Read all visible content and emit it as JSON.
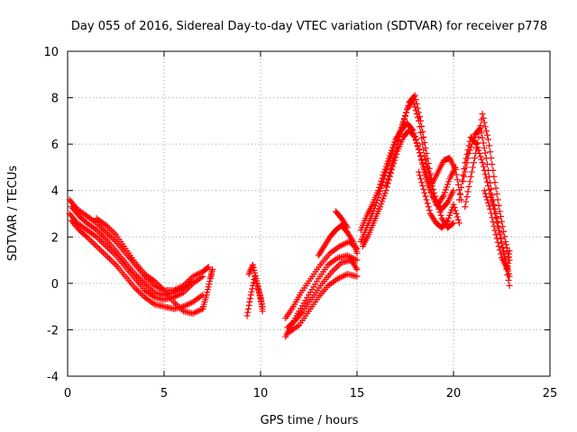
{
  "chart_data": {
    "type": "scatter",
    "title": "Day 055 of 2016, Sidereal Day-to-day VTEC variation (SDTVAR) for receiver p778",
    "xlabel": "GPS time / hours",
    "ylabel": "SDTVAR / TECUs",
    "xlim": [
      0,
      25
    ],
    "ylim": [
      -4,
      10
    ],
    "xticks": [
      0,
      5,
      10,
      15,
      20,
      25
    ],
    "yticks": [
      -4,
      -2,
      0,
      2,
      4,
      6,
      8,
      10
    ],
    "xtick_labels": [
      "0",
      "5",
      "10",
      "15",
      "20",
      "25"
    ],
    "ytick_labels": [
      "-4",
      "-2",
      "0",
      "2",
      "4",
      "6",
      "8",
      "10"
    ],
    "grid": true,
    "marker": "+",
    "series": [
      {
        "name": "SDTVAR",
        "color": "#ff0000",
        "tracks": [
          {
            "x": [
              0.1,
              0.5,
              1.0,
              1.5,
              2.0,
              2.5,
              3.0,
              3.5,
              4.0,
              4.5,
              5.0,
              5.5,
              6.0,
              6.5,
              7.0,
              7.3
            ],
            "y": [
              3.6,
              3.2,
              2.9,
              2.6,
              2.2,
              1.8,
              1.3,
              0.8,
              0.3,
              -0.1,
              -0.3,
              -0.3,
              -0.1,
              0.3,
              0.5,
              0.7
            ]
          },
          {
            "x": [
              0.1,
              0.5,
              1.0,
              1.5,
              2.0,
              2.5,
              3.0,
              3.5,
              4.0,
              4.5,
              5.0,
              5.5,
              6.0,
              6.5,
              7.0
            ],
            "y": [
              3.0,
              2.6,
              2.3,
              2.0,
              1.6,
              1.2,
              0.7,
              0.2,
              -0.3,
              -0.6,
              -0.7,
              -0.6,
              -0.4,
              0.0,
              0.3
            ]
          },
          {
            "x": [
              0.2,
              0.6,
              1.0,
              1.5,
              2.0,
              2.5,
              3.0,
              3.5,
              4.0,
              4.5,
              5.0,
              5.5,
              6.0,
              6.5,
              7.0
            ],
            "y": [
              2.7,
              2.3,
              2.0,
              1.6,
              1.2,
              0.8,
              0.3,
              -0.2,
              -0.6,
              -0.9,
              -1.0,
              -1.1,
              -1.0,
              -0.8,
              -0.5
            ]
          },
          {
            "x": [
              0.2,
              0.6,
              1.0,
              1.5,
              2.0,
              2.5,
              3.0,
              3.5,
              4.0,
              4.5,
              5.0,
              5.5,
              6.0,
              6.5
            ],
            "y": [
              3.3,
              2.9,
              2.6,
              2.3,
              1.9,
              1.4,
              0.9,
              0.4,
              0.0,
              -0.4,
              -0.5,
              -0.4,
              -0.2,
              0.1
            ]
          },
          {
            "x": [
              1.5,
              2.0,
              2.5,
              3.0,
              3.5,
              4.0,
              4.5,
              5.0,
              5.5,
              6.0,
              6.5,
              7.0
            ],
            "y": [
              2.8,
              2.5,
              2.1,
              1.5,
              0.9,
              0.4,
              0.1,
              -0.3,
              -0.8,
              -1.2,
              -1.3,
              -1.1
            ]
          },
          {
            "x": [
              7.0,
              7.2,
              7.4,
              7.5
            ],
            "y": [
              -1.1,
              -0.5,
              0.2,
              0.6
            ]
          },
          {
            "x": [
              9.3,
              9.5,
              9.7,
              9.9,
              10.1
            ],
            "y": [
              -1.4,
              -0.5,
              0.3,
              -0.3,
              -1.0
            ]
          },
          {
            "x": [
              9.4,
              9.6,
              9.8,
              10.0,
              10.1
            ],
            "y": [
              0.4,
              0.8,
              0.1,
              -0.6,
              -1.2
            ]
          },
          {
            "x": [
              11.3,
              11.6,
              12.0,
              12.5,
              13.0,
              13.5,
              14.0,
              14.5,
              15.0
            ],
            "y": [
              -2.3,
              -1.8,
              -1.2,
              -0.5,
              0.2,
              0.8,
              1.1,
              1.2,
              1.0
            ]
          },
          {
            "x": [
              11.3,
              11.7,
              12.1,
              12.6,
              13.1,
              13.6,
              14.1,
              14.6,
              15.0
            ],
            "y": [
              -1.5,
              -1.0,
              -0.4,
              0.2,
              0.8,
              1.3,
              1.6,
              1.8,
              1.5
            ]
          },
          {
            "x": [
              11.4,
              11.8,
              12.2,
              12.7,
              13.2,
              13.7,
              14.2,
              14.7,
              15.0
            ],
            "y": [
              -1.9,
              -1.6,
              -1.2,
              -0.6,
              0.0,
              0.5,
              0.9,
              1.0,
              0.6
            ]
          },
          {
            "x": [
              11.5,
              12.0,
              12.5,
              13.0,
              13.5,
              14.0,
              14.5,
              15.0
            ],
            "y": [
              -2.1,
              -1.8,
              -1.2,
              -0.6,
              -0.1,
              0.2,
              0.4,
              0.3
            ]
          },
          {
            "x": [
              13.0,
              13.3,
              13.6,
              13.9,
              14.2,
              14.5,
              14.8,
              15.0
            ],
            "y": [
              1.2,
              1.6,
              2.0,
              2.3,
              2.5,
              2.2,
              1.8,
              1.3
            ]
          },
          {
            "x": [
              13.9,
              14.2,
              14.5
            ],
            "y": [
              3.1,
              2.8,
              2.4
            ]
          },
          {
            "x": [
              15.2,
              15.5,
              15.8,
              16.1,
              16.4,
              16.7,
              17.0,
              17.3,
              17.6,
              17.9,
              18.2,
              18.5,
              18.8,
              19.1,
              19.4,
              19.7,
              20.0
            ],
            "y": [
              1.8,
              2.4,
              3.0,
              3.7,
              4.5,
              5.3,
              6.1,
              6.7,
              7.5,
              7.9,
              7.0,
              5.5,
              4.5,
              3.6,
              2.8,
              2.4,
              2.6
            ]
          },
          {
            "x": [
              15.2,
              15.5,
              15.8,
              16.1,
              16.4,
              16.7,
              17.0,
              17.3,
              17.6,
              17.9,
              18.2,
              18.5,
              18.8,
              19.1,
              19.4,
              19.7,
              20.0
            ],
            "y": [
              2.3,
              2.9,
              3.4,
              4.0,
              4.8,
              5.5,
              6.2,
              6.6,
              6.9,
              6.6,
              5.8,
              4.8,
              4.0,
              3.4,
              3.2,
              3.5,
              4.0
            ]
          },
          {
            "x": [
              15.3,
              15.6,
              15.9,
              16.2,
              16.5,
              16.8,
              17.1,
              17.4,
              17.7,
              18.0,
              18.3,
              18.6,
              18.9,
              19.2,
              19.5,
              19.8,
              20.1
            ],
            "y": [
              1.6,
              2.1,
              2.7,
              3.3,
              4.0,
              4.9,
              5.7,
              6.3,
              6.6,
              6.3,
              5.5,
              4.6,
              3.8,
              3.4,
              3.8,
              4.5,
              5.0
            ]
          },
          {
            "x": [
              16.5,
              16.8,
              17.1,
              17.4,
              17.7,
              18.0,
              18.3,
              18.6,
              18.9,
              19.2,
              19.5,
              19.8,
              20.1,
              20.4
            ],
            "y": [
              4.2,
              5.1,
              6.0,
              6.9,
              7.8,
              8.1,
              7.0,
              5.6,
              4.3,
              4.8,
              5.3,
              5.4,
              4.9,
              3.6
            ]
          },
          {
            "x": [
              18.2,
              18.5,
              18.8,
              19.1,
              19.4,
              19.7,
              20.0,
              20.3
            ],
            "y": [
              4.8,
              3.9,
              3.0,
              2.6,
              2.4,
              2.7,
              3.4,
              2.6
            ]
          },
          {
            "x": [
              20.3,
              20.6,
              20.9,
              21.2,
              21.5,
              21.8,
              22.1,
              22.4,
              22.7,
              22.9
            ],
            "y": [
              3.6,
              5.2,
              6.3,
              6.0,
              5.2,
              4.2,
              3.2,
              2.1,
              1.0,
              0.3
            ]
          },
          {
            "x": [
              20.5,
              20.8,
              21.1,
              21.4,
              21.7,
              22.0,
              22.3,
              22.6,
              22.9
            ],
            "y": [
              4.4,
              5.6,
              6.4,
              6.7,
              5.4,
              3.8,
              2.6,
              1.3,
              -0.1
            ]
          },
          {
            "x": [
              20.6,
              20.9,
              21.2,
              21.5,
              21.8,
              22.1,
              22.4,
              22.7,
              22.9
            ],
            "y": [
              3.3,
              4.6,
              5.8,
              7.3,
              6.2,
              4.6,
              3.1,
              1.8,
              1.0
            ]
          },
          {
            "x": [
              21.6,
              21.9,
              22.2,
              22.5,
              22.8,
              22.9
            ],
            "y": [
              4.0,
              3.2,
              2.1,
              1.1,
              0.6,
              1.4
            ]
          }
        ]
      }
    ]
  }
}
